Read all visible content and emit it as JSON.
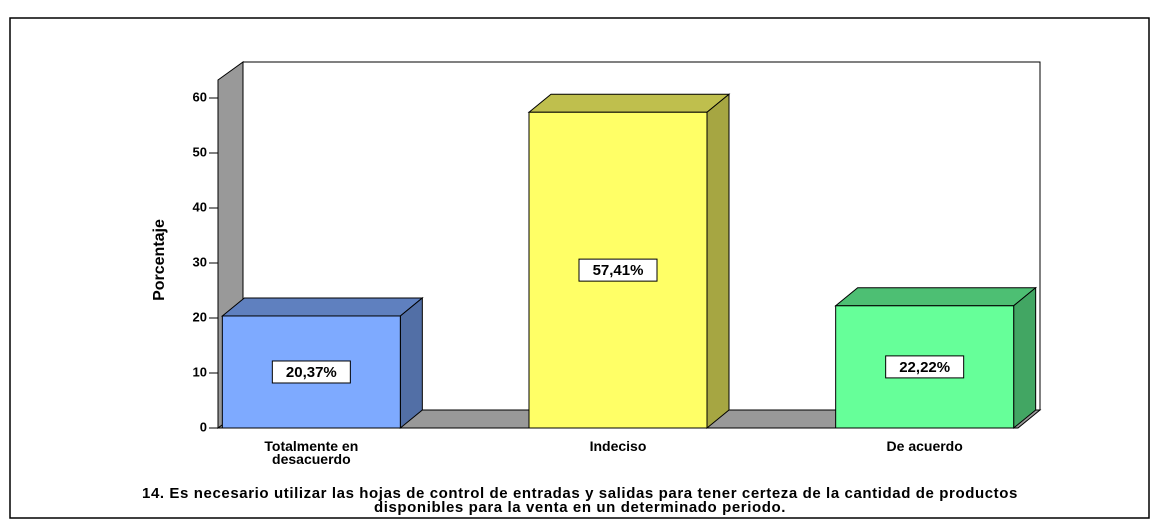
{
  "chart_data": {
    "type": "bar3d",
    "title": "14. Es necesario utilizar las hojas de control de entradas y salidas para tener certeza de la cantidad de productos disponibles para la venta en un determinado periodo.",
    "y_label": "Porcentaje",
    "categories": [
      "Totalmente en desacuerdo",
      "Indeciso",
      "De acuerdo"
    ],
    "values": [
      20.37,
      57.41,
      22.22
    ],
    "value_labels": [
      "20,37%",
      "57,41%",
      "22,22%"
    ],
    "colors": [
      "#7eaaff",
      "#ffff66",
      "#66ff99"
    ],
    "ylim": [
      0,
      60
    ],
    "yticks": [
      0,
      10,
      20,
      30,
      40,
      50,
      60
    ]
  }
}
